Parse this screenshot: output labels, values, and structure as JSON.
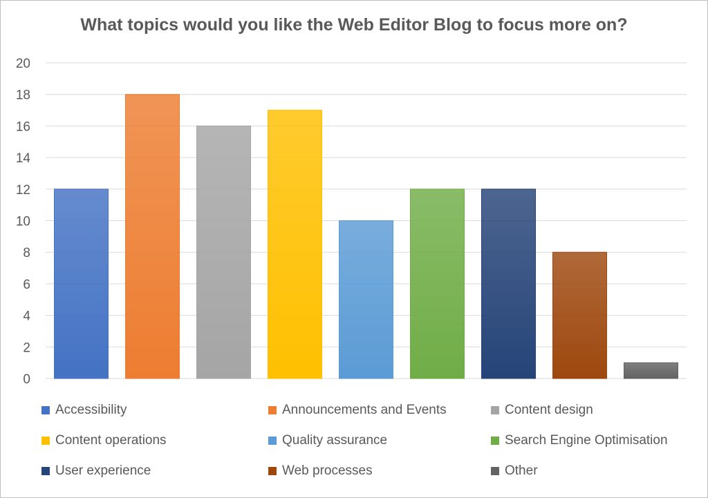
{
  "chart_data": {
    "type": "bar",
    "title": "What topics would you like the Web Editor Blog to focus more on?",
    "categories": [
      "Accessibility",
      "Announcements and Events",
      "Content design",
      "Content operations",
      "Quality assurance",
      "Search Engine Optimisation",
      "User experience",
      "Web processes",
      "Other"
    ],
    "values": [
      12,
      18,
      16,
      17,
      10,
      12,
      12,
      8,
      1
    ],
    "colors": [
      "#4472c4",
      "#ed7d31",
      "#a5a5a5",
      "#ffc000",
      "#5b9bd5",
      "#70ad47",
      "#264478",
      "#9e480e",
      "#636363"
    ],
    "ylim": [
      0,
      20
    ],
    "yticks": [
      "0",
      "2",
      "4",
      "6",
      "8",
      "10",
      "12",
      "14",
      "16",
      "18",
      "20"
    ],
    "grid": true,
    "legend": "bottom"
  }
}
